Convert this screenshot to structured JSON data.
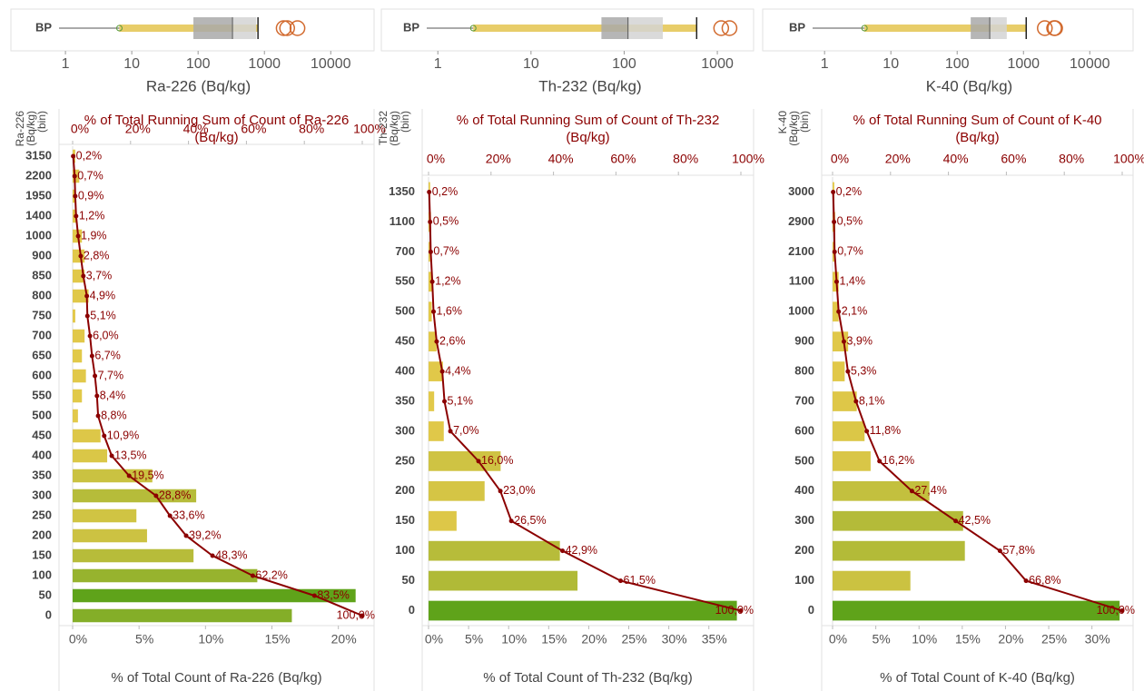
{
  "chart_data": [
    {
      "type": "boxplot",
      "category": "BP",
      "xlabel": "Ra-226 (Bq/kg)",
      "log": true,
      "xlim": [
        0.8,
        45000
      ],
      "xticks": [
        1,
        10,
        100,
        1000,
        10000
      ],
      "min": 6.5,
      "q1": 85,
      "median": 330,
      "q3": 750,
      "max": 800,
      "outliers": [
        1950,
        2200,
        3150
      ],
      "box_colors": [
        "#a9a9a9",
        "#d4d4d4"
      ],
      "whisker_color": "#e2c043",
      "outlier_color": "#d26a2e"
    },
    {
      "type": "boxplot",
      "category": "BP",
      "xlabel": "Th-232 (Bq/kg)",
      "log": true,
      "xlim": [
        0.76,
        2450
      ],
      "xticks": [
        1,
        10,
        100,
        1000
      ],
      "min": 2.4,
      "q1": 57,
      "median": 110,
      "q3": 260,
      "max": 600,
      "outliers": [
        1100,
        1350
      ],
      "box_colors": [
        "#a9a9a9",
        "#d4d4d4"
      ],
      "whisker_color": "#e2c043",
      "outlier_color": "#d26a2e"
    },
    {
      "type": "boxplot",
      "category": "BP",
      "xlabel": "K-40 (Bq/kg)",
      "log": true,
      "xlim": [
        0.66,
        35000
      ],
      "xticks": [
        1,
        10,
        100,
        1000,
        10000
      ],
      "min": 4,
      "q1": 160,
      "median": 310,
      "q3": 560,
      "max": 1100,
      "outliers": [
        2100,
        2900,
        3000
      ],
      "box_colors": [
        "#a9a9a9",
        "#d4d4d4"
      ],
      "whisker_color": "#e2c043",
      "outlier_color": "#d26a2e"
    },
    {
      "type": "bar",
      "ylabel": [
        "Ra-226",
        "(Bq/kg)",
        "(bin)"
      ],
      "xlabel": "% of Total Count of Ra-226 (Bq/kg)",
      "categories": [
        "3150",
        "2200",
        "1950",
        "1400",
        "1000",
        "900",
        "850",
        "800",
        "750",
        "700",
        "650",
        "600",
        "550",
        "500",
        "450",
        "400",
        "350",
        "300",
        "250",
        "200",
        "150",
        "100",
        "50",
        "0"
      ],
      "values": [
        0.2,
        0.5,
        0.2,
        0.3,
        0.7,
        0.9,
        0.9,
        1.2,
        0.2,
        0.9,
        0.7,
        1.0,
        0.7,
        0.4,
        2.1,
        2.6,
        6.0,
        9.3,
        4.8,
        5.6,
        9.1,
        13.9,
        21.3,
        16.5
      ],
      "color_scale": [
        "#e3c94a",
        "#5fa31a"
      ],
      "xlim": [
        0,
        21.8
      ],
      "xticks": [
        {
          "value": 0,
          "label": "0%"
        },
        {
          "value": 5,
          "label": "5%"
        },
        {
          "value": 10,
          "label": "10%"
        },
        {
          "value": 15,
          "label": "15%"
        },
        {
          "value": 20,
          "label": "20%"
        }
      ],
      "running_sum": {
        "title": [
          "% of Total Running Sum of Count of Ra-226",
          "(Bq/kg)"
        ],
        "color": "#8b0000",
        "values": [
          0.2,
          0.7,
          0.9,
          1.2,
          1.9,
          2.8,
          3.7,
          4.9,
          5.1,
          6.0,
          6.7,
          7.7,
          8.4,
          8.8,
          10.9,
          13.5,
          19.5,
          28.8,
          33.6,
          39.2,
          48.3,
          62.2,
          83.5,
          100.0
        ],
        "value_labels": [
          "0,2%",
          "0,7%",
          "0,9%",
          "1,2%",
          "1,9%",
          "2,8%",
          "3,7%",
          "4,9%",
          "5,1%",
          "6,0%",
          "6,7%",
          "7,7%",
          "8,4%",
          "8,8%",
          "10,9%",
          "13,5%",
          "19,5%",
          "28,8%",
          "33,6%",
          "39,2%",
          "48,3%",
          "62,2%",
          "83,5%",
          "100,0%"
        ],
        "xlim": [
          0,
          100
        ],
        "xticks": [
          {
            "value": 0,
            "label": "0%"
          },
          {
            "value": 20,
            "label": "20%"
          },
          {
            "value": 40,
            "label": "40%"
          },
          {
            "value": 60,
            "label": "60%"
          },
          {
            "value": 80,
            "label": "80%"
          },
          {
            "value": 100,
            "label": "100%"
          }
        ]
      }
    },
    {
      "type": "bar",
      "ylabel": [
        "Th-232",
        "(Bq/kg)",
        "(bin)"
      ],
      "xlabel": "% of Total Count of Th-232 (Bq/kg)",
      "categories": [
        "1350",
        "1100",
        "700",
        "550",
        "500",
        "450",
        "400",
        "350",
        "300",
        "250",
        "200",
        "150",
        "100",
        "50",
        "0"
      ],
      "values": [
        0.2,
        0.3,
        0.2,
        0.5,
        0.4,
        1.0,
        1.8,
        0.7,
        1.9,
        9.0,
        7.0,
        3.5,
        16.4,
        18.6,
        38.5
      ],
      "color_scale": [
        "#e3c94a",
        "#5fa31a"
      ],
      "xlim": [
        0,
        39
      ],
      "xticks": [
        {
          "value": 0,
          "label": "0%"
        },
        {
          "value": 5,
          "label": "5%"
        },
        {
          "value": 10,
          "label": "10%"
        },
        {
          "value": 15,
          "label": "15%"
        },
        {
          "value": 20,
          "label": "20%"
        },
        {
          "value": 25,
          "label": "25%"
        },
        {
          "value": 30,
          "label": "30%"
        },
        {
          "value": 35,
          "label": "35%"
        }
      ],
      "running_sum": {
        "title": [
          "% of Total Running Sum of Count of Th-232",
          "(Bq/kg)"
        ],
        "color": "#8b0000",
        "values": [
          0.2,
          0.5,
          0.7,
          1.2,
          1.6,
          2.6,
          4.4,
          5.1,
          7.0,
          16.0,
          23.0,
          26.5,
          42.9,
          61.5,
          100.0
        ],
        "value_labels": [
          "0,2%",
          "0,5%",
          "0,7%",
          "1,2%",
          "1,6%",
          "2,6%",
          "4,4%",
          "5,1%",
          "7,0%",
          "16,0%",
          "23,0%",
          "26,5%",
          "42,9%",
          "61,5%",
          "100,0%"
        ],
        "xlim": [
          0,
          100
        ],
        "xticks": [
          {
            "value": 0,
            "label": "0%"
          },
          {
            "value": 20,
            "label": "20%"
          },
          {
            "value": 40,
            "label": "40%"
          },
          {
            "value": 60,
            "label": "60%"
          },
          {
            "value": 80,
            "label": "80%"
          },
          {
            "value": 100,
            "label": "100%"
          }
        ]
      }
    },
    {
      "type": "bar",
      "ylabel": [
        "K-40",
        "(Bq/kg)",
        "(bin)"
      ],
      "xlabel": "% of Total Count of K-40 (Bq/kg)",
      "categories": [
        "3000",
        "2900",
        "2100",
        "1100",
        "1000",
        "900",
        "800",
        "700",
        "600",
        "500",
        "400",
        "300",
        "200",
        "100",
        "0"
      ],
      "values": [
        0.2,
        0.3,
        0.2,
        0.7,
        0.7,
        1.8,
        1.4,
        2.8,
        3.7,
        4.4,
        11.2,
        15.1,
        15.3,
        9.0,
        33.2
      ],
      "color_scale": [
        "#e3c94a",
        "#5fa31a"
      ],
      "xlim": [
        0,
        33.5
      ],
      "xticks": [
        {
          "value": 0,
          "label": "0%"
        },
        {
          "value": 5,
          "label": "5%"
        },
        {
          "value": 10,
          "label": "10%"
        },
        {
          "value": 15,
          "label": "15%"
        },
        {
          "value": 20,
          "label": "20%"
        },
        {
          "value": 25,
          "label": "25%"
        },
        {
          "value": 30,
          "label": "30%"
        }
      ],
      "running_sum": {
        "title": [
          "% of Total Running Sum of Count of K-40",
          "(Bq/kg)"
        ],
        "color": "#8b0000",
        "values": [
          0.2,
          0.5,
          0.7,
          1.4,
          2.1,
          3.9,
          5.3,
          8.1,
          11.8,
          16.2,
          27.4,
          42.5,
          57.8,
          66.8,
          100.0
        ],
        "value_labels": [
          "0,2%",
          "0,5%",
          "0,7%",
          "1,4%",
          "2,1%",
          "3,9%",
          "5,3%",
          "8,1%",
          "11,8%",
          "16,2%",
          "27,4%",
          "42,5%",
          "57,8%",
          "66,8%",
          "100,0%"
        ],
        "xlim": [
          0,
          100
        ],
        "xticks": [
          {
            "value": 0,
            "label": "0%"
          },
          {
            "value": 20,
            "label": "20%"
          },
          {
            "value": 40,
            "label": "40%"
          },
          {
            "value": 60,
            "label": "60%"
          },
          {
            "value": 80,
            "label": "80%"
          },
          {
            "value": 100,
            "label": "100%"
          }
        ]
      }
    }
  ]
}
